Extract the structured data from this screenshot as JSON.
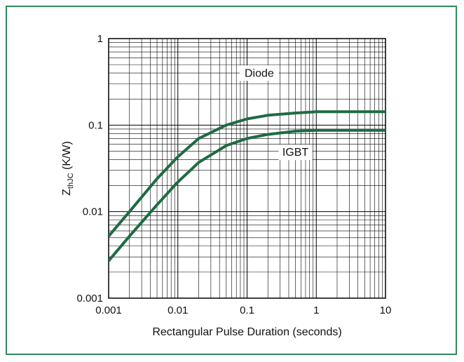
{
  "chart_data": {
    "type": "line",
    "xscale": "log",
    "yscale": "log",
    "xlim": [
      0.001,
      10
    ],
    "ylim": [
      0.001,
      1
    ],
    "grid": true,
    "xlabel": "Rectangular Pulse Duration (seconds)",
    "ylabel_main": "Z",
    "ylabel_sub": "thJC",
    "ylabel_unit": " (K/W)",
    "x_ticks": [
      0.001,
      0.01,
      0.1,
      1,
      10
    ],
    "x_tick_labels": [
      "0.001",
      "0.01",
      "0.1",
      "1",
      "10"
    ],
    "y_ticks": [
      0.001,
      0.01,
      0.1,
      1
    ],
    "y_tick_labels": [
      "0.001",
      "0.01",
      "0.1",
      "1"
    ],
    "line_color": "#1e6b43",
    "frame_color": "#2e8b57",
    "series": [
      {
        "name": "Diode",
        "x": [
          0.001,
          0.002,
          0.005,
          0.01,
          0.02,
          0.05,
          0.1,
          0.2,
          0.5,
          1,
          2,
          5,
          10
        ],
        "y": [
          0.0052,
          0.01,
          0.024,
          0.043,
          0.07,
          0.1,
          0.118,
          0.13,
          0.138,
          0.143,
          0.143,
          0.143,
          0.143
        ]
      },
      {
        "name": "IGBT",
        "x": [
          0.001,
          0.002,
          0.005,
          0.01,
          0.02,
          0.05,
          0.1,
          0.2,
          0.5,
          1,
          2,
          5,
          10
        ],
        "y": [
          0.0027,
          0.0052,
          0.012,
          0.022,
          0.037,
          0.058,
          0.07,
          0.078,
          0.085,
          0.087,
          0.087,
          0.087,
          0.087
        ]
      }
    ],
    "annotations": [
      {
        "text": "Diode",
        "series": "Diode"
      },
      {
        "text": "IGBT",
        "series": "IGBT"
      }
    ]
  }
}
